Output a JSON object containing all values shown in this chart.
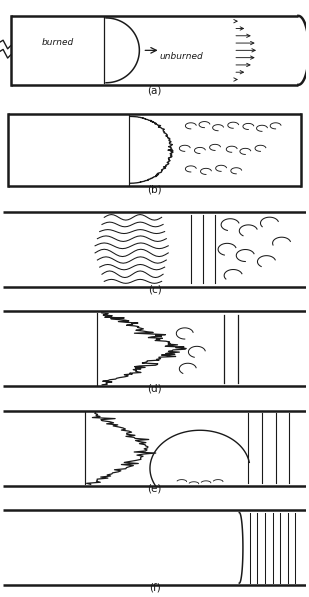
{
  "lc": "#1a1a1a",
  "lw_tube": 1.8,
  "lw_flame": 1.0,
  "label_fs": 7.5,
  "text_fs": 6.5,
  "fig_width": 3.09,
  "fig_height": 5.97,
  "panel_labels": [
    "(a)",
    "(b)",
    "(c)",
    "(d)",
    "(e)",
    "(f)"
  ]
}
